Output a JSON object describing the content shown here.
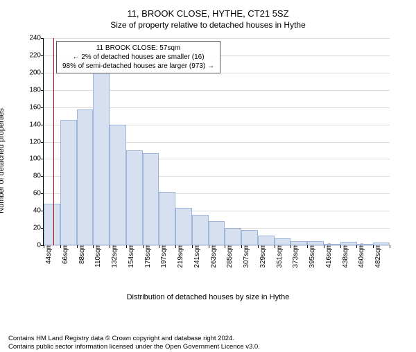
{
  "chart": {
    "type": "histogram",
    "title_line1": "11, BROOK CLOSE, HYTHE, CT21 5SZ",
    "title_line2": "Size of property relative to detached houses in Hythe",
    "ylabel": "Number of detached properties",
    "xlabel": "Distribution of detached houses by size in Hythe",
    "ylim": [
      0,
      240
    ],
    "ytick_step": 20,
    "background_color": "#ffffff",
    "grid_color": "#dddddd",
    "bar_fill": "#d6e0f0",
    "bar_stroke": "#9fb4d9",
    "reference_line_color": "#cc0000",
    "reference_line_label": "57sqm",
    "reference_line_x_index": 0.6,
    "title_fontsize": 13,
    "label_fontsize": 11,
    "tick_fontsize": 10,
    "categories": [
      "44sqm",
      "66sqm",
      "88sqm",
      "110sqm",
      "132sqm",
      "154sqm",
      "175sqm",
      "197sqm",
      "219sqm",
      "241sqm",
      "263sqm",
      "285sqm",
      "307sqm",
      "329sqm",
      "351sqm",
      "373sqm",
      "395sqm",
      "416sqm",
      "438sqm",
      "460sqm",
      "482sqm"
    ],
    "values": [
      48,
      145,
      157,
      200,
      140,
      110,
      107,
      62,
      43,
      35,
      28,
      20,
      18,
      11,
      8,
      5,
      5,
      2,
      4,
      2,
      3
    ],
    "annotation": {
      "line1": "11 BROOK CLOSE: 57sqm",
      "line2": "← 2% of detached houses are smaller (16)",
      "line3": "98% of semi-detached houses are larger (973) →",
      "border_color": "#555555",
      "fontsize": 10
    }
  },
  "footer": {
    "line1": "Contains HM Land Registry data © Crown copyright and database right 2024.",
    "line2": "Contains public sector information licensed under the Open Government Licence v3.0.",
    "color": "#000000"
  }
}
